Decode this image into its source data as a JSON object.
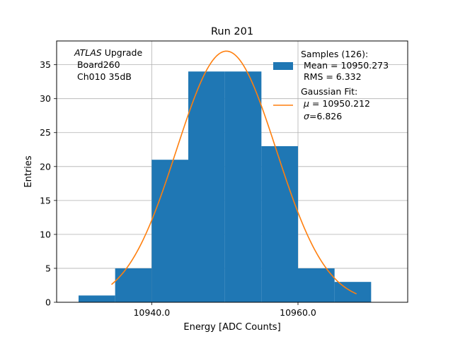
{
  "chart_data": {
    "type": "histogram",
    "title": "Run 201",
    "xlabel": "Energy [ADC Counts]",
    "ylabel": "Entries",
    "xlim": [
      10927,
      10975
    ],
    "ylim": [
      0,
      38.5
    ],
    "x_ticks": [
      10940,
      10960
    ],
    "x_tick_labels": [
      "10940.0",
      "10960.0"
    ],
    "y_ticks": [
      0,
      5,
      10,
      15,
      20,
      25,
      30,
      35
    ],
    "y_tick_labels": [
      "0",
      "5",
      "10",
      "15",
      "20",
      "25",
      "30",
      "35"
    ],
    "grid": true,
    "bins": [
      {
        "x0": 10930,
        "x1": 10935,
        "count": 1
      },
      {
        "x0": 10935,
        "x1": 10940,
        "count": 5
      },
      {
        "x0": 10940,
        "x1": 10945,
        "count": 21
      },
      {
        "x0": 10945,
        "x1": 10950,
        "count": 34
      },
      {
        "x0": 10950,
        "x1": 10955,
        "count": 34
      },
      {
        "x0": 10955,
        "x1": 10960,
        "count": 23
      },
      {
        "x0": 10960,
        "x1": 10965,
        "count": 5
      },
      {
        "x0": 10965,
        "x1": 10970,
        "count": 3
      }
    ],
    "fit": {
      "name": "Gaussian Fit",
      "mu": 10950.212,
      "sigma": 6.826,
      "amplitude": 37.0,
      "x_range": [
        10934.5,
        10968
      ]
    },
    "colors": {
      "bars": "#1f77b4",
      "fit": "#ff7f0e",
      "grid": "#b0b0b0"
    },
    "annotation": {
      "italic": "ATLAS",
      "line1_rest": " Upgrade",
      "line2": " Board260",
      "line3": " Ch010 35dB"
    },
    "legend": {
      "position": "top-right",
      "samples_line1": "Samples (126):",
      "samples_line2": " Mean = 10950.273",
      "samples_line3": " RMS = 6.332",
      "fit_line1": "Gaussian Fit:",
      "fit_mu_symbol": "μ",
      "fit_mu_value": " = 10950.212",
      "fit_sigma_symbol": "σ",
      "fit_sigma_value": "=6.826"
    }
  }
}
